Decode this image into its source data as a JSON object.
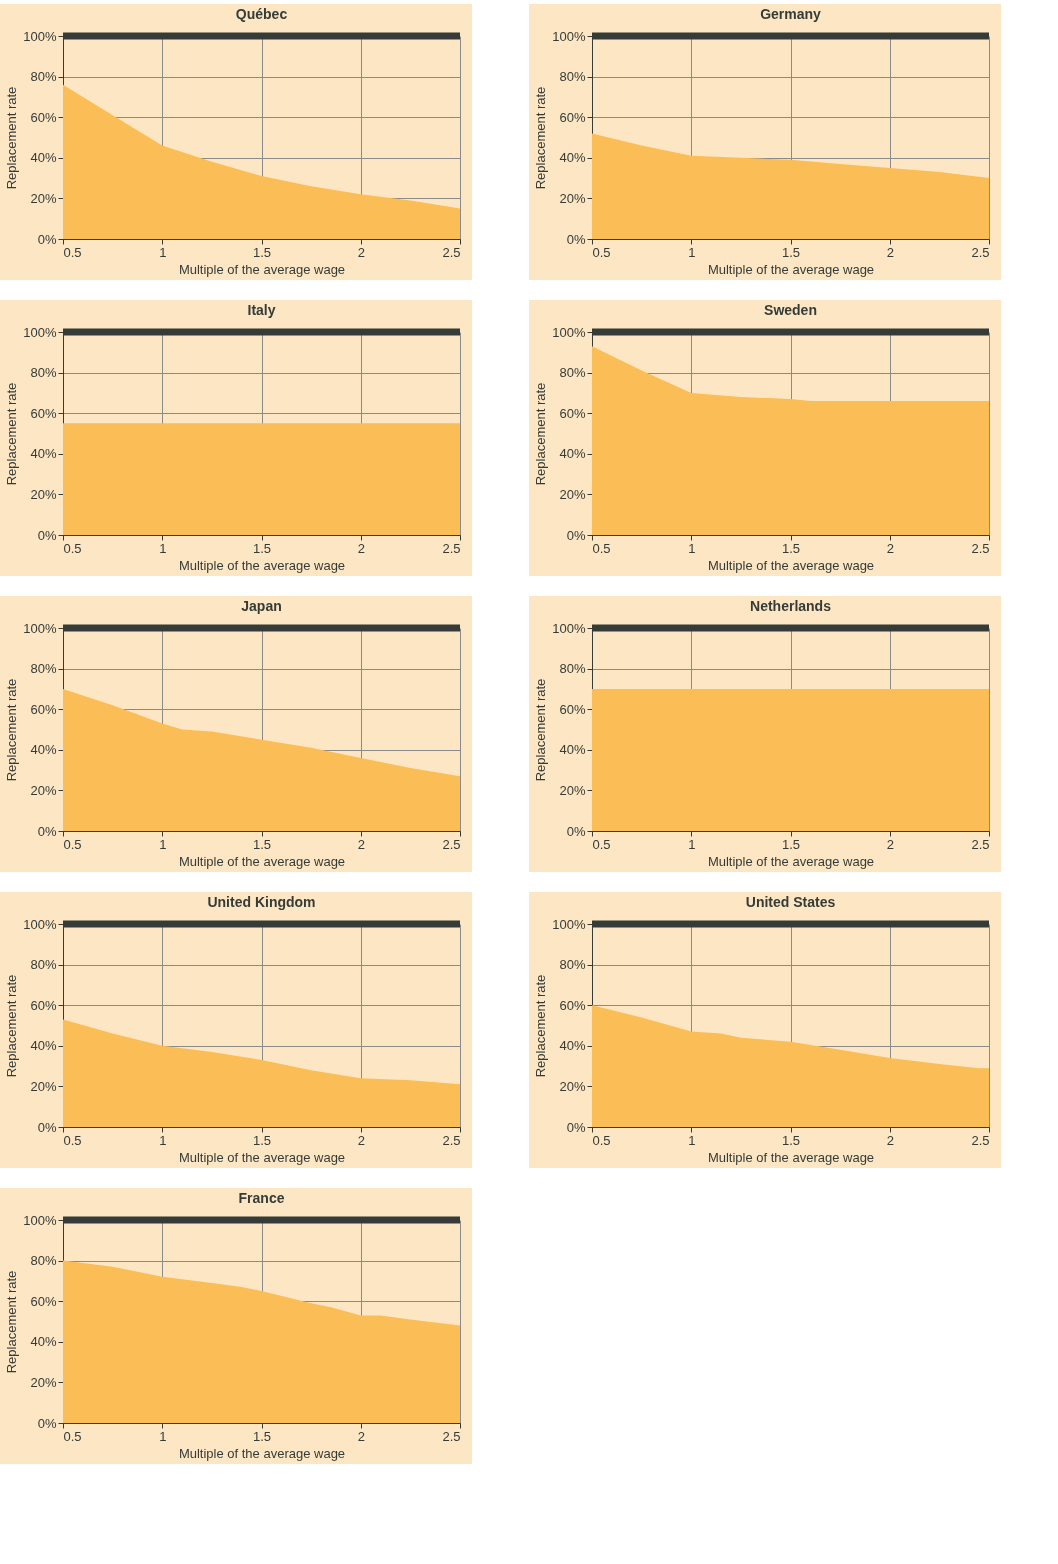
{
  "chart_data": [
    {
      "type": "area",
      "title": "Québec",
      "xlabel": "Multiple of the average wage",
      "ylabel": "Replacement rate",
      "x": [
        0.5,
        0.75,
        1,
        1.25,
        1.5,
        1.75,
        2,
        2.25,
        2.5
      ],
      "values": [
        76,
        61,
        46,
        38,
        31,
        26,
        22,
        19,
        15
      ],
      "color": "#fbbd56",
      "xlim": [
        0.5,
        2.5
      ],
      "xticks": [
        0.5,
        1,
        1.5,
        2,
        2.5
      ],
      "ylim": [
        0,
        100
      ],
      "yticks": [
        {
          "value": 0,
          "label": "0%"
        },
        {
          "value": 20,
          "label": "20%"
        },
        {
          "value": 40,
          "label": "40%"
        },
        {
          "value": 60,
          "label": "60%"
        },
        {
          "value": 80,
          "label": "80%"
        },
        {
          "value": 100,
          "label": "100%"
        }
      ],
      "grid": true,
      "ref_lines": [
        {
          "axis": "y",
          "value": 100,
          "color": "#353c37"
        }
      ]
    },
    {
      "type": "area",
      "title": "Germany",
      "xlabel": "Multiple of the average wage",
      "ylabel": "Replacement rate",
      "x": [
        0.5,
        0.75,
        1,
        1.25,
        1.5,
        1.75,
        2,
        2.25,
        2.5
      ],
      "values": [
        52,
        46,
        41,
        40,
        39,
        37,
        35,
        33,
        30
      ],
      "color": "#fbbd56",
      "xlim": [
        0.5,
        2.5
      ],
      "xticks": [
        0.5,
        1,
        1.5,
        2,
        2.5
      ],
      "ylim": [
        0,
        100
      ],
      "yticks": [
        {
          "value": 0,
          "label": "0%"
        },
        {
          "value": 20,
          "label": "20%"
        },
        {
          "value": 40,
          "label": "40%"
        },
        {
          "value": 60,
          "label": "60%"
        },
        {
          "value": 80,
          "label": "80%"
        },
        {
          "value": 100,
          "label": "100%"
        }
      ],
      "grid": true,
      "ref_lines": [
        {
          "axis": "y",
          "value": 100,
          "color": "#353c37"
        }
      ]
    },
    {
      "type": "area",
      "title": "Italy",
      "xlabel": "Multiple of the average wage",
      "ylabel": "Replacement rate",
      "x": [
        0.5,
        2.5
      ],
      "values": [
        55,
        55
      ],
      "color": "#fbbd56",
      "xlim": [
        0.5,
        2.5
      ],
      "xticks": [
        0.5,
        1,
        1.5,
        2,
        2.5
      ],
      "ylim": [
        0,
        100
      ],
      "yticks": [
        {
          "value": 0,
          "label": "0%"
        },
        {
          "value": 20,
          "label": "20%"
        },
        {
          "value": 40,
          "label": "40%"
        },
        {
          "value": 60,
          "label": "60%"
        },
        {
          "value": 80,
          "label": "80%"
        },
        {
          "value": 100,
          "label": "100%"
        }
      ],
      "grid": true,
      "ref_lines": [
        {
          "axis": "y",
          "value": 100,
          "color": "#353c37"
        }
      ]
    },
    {
      "type": "area",
      "title": "Sweden",
      "xlabel": "Multiple of the average wage",
      "ylabel": "Replacement rate",
      "x": [
        0.5,
        0.75,
        1,
        1.25,
        1.5,
        1.6,
        2,
        2.5
      ],
      "values": [
        93,
        81,
        70,
        68,
        67,
        66,
        66,
        66
      ],
      "color": "#fbbd56",
      "xlim": [
        0.5,
        2.5
      ],
      "xticks": [
        0.5,
        1,
        1.5,
        2,
        2.5
      ],
      "ylim": [
        0,
        100
      ],
      "yticks": [
        {
          "value": 0,
          "label": "0%"
        },
        {
          "value": 20,
          "label": "20%"
        },
        {
          "value": 40,
          "label": "40%"
        },
        {
          "value": 60,
          "label": "60%"
        },
        {
          "value": 80,
          "label": "80%"
        },
        {
          "value": 100,
          "label": "100%"
        }
      ],
      "grid": true,
      "ref_lines": [
        {
          "axis": "y",
          "value": 100,
          "color": "#353c37"
        }
      ]
    },
    {
      "type": "area",
      "title": "Japan",
      "xlabel": "Multiple of the average wage",
      "ylabel": "Replacement rate",
      "x": [
        0.5,
        0.75,
        1,
        1.1,
        1.25,
        1.5,
        1.75,
        2,
        2.25,
        2.5
      ],
      "values": [
        70,
        62,
        53,
        50,
        49,
        45,
        41,
        36,
        31,
        27
      ],
      "color": "#fbbd56",
      "xlim": [
        0.5,
        2.5
      ],
      "xticks": [
        0.5,
        1,
        1.5,
        2,
        2.5
      ],
      "ylim": [
        0,
        100
      ],
      "yticks": [
        {
          "value": 0,
          "label": "0%"
        },
        {
          "value": 20,
          "label": "20%"
        },
        {
          "value": 40,
          "label": "40%"
        },
        {
          "value": 60,
          "label": "60%"
        },
        {
          "value": 80,
          "label": "80%"
        },
        {
          "value": 100,
          "label": "100%"
        }
      ],
      "grid": true,
      "ref_lines": [
        {
          "axis": "y",
          "value": 100,
          "color": "#353c37"
        }
      ]
    },
    {
      "type": "area",
      "title": "Netherlands",
      "xlabel": "Multiple of the average wage",
      "ylabel": "Replacement rate",
      "x": [
        0.5,
        2.5
      ],
      "values": [
        70,
        70
      ],
      "color": "#fbbd56",
      "xlim": [
        0.5,
        2.5
      ],
      "xticks": [
        0.5,
        1,
        1.5,
        2,
        2.5
      ],
      "ylim": [
        0,
        100
      ],
      "yticks": [
        {
          "value": 0,
          "label": "0%"
        },
        {
          "value": 20,
          "label": "20%"
        },
        {
          "value": 40,
          "label": "40%"
        },
        {
          "value": 60,
          "label": "60%"
        },
        {
          "value": 80,
          "label": "80%"
        },
        {
          "value": 100,
          "label": "100%"
        }
      ],
      "grid": true,
      "ref_lines": [
        {
          "axis": "y",
          "value": 100,
          "color": "#353c37"
        }
      ]
    },
    {
      "type": "area",
      "title": "United Kingdom",
      "xlabel": "Multiple of the average wage",
      "ylabel": "Replacement rate",
      "x": [
        0.5,
        0.75,
        1,
        1.25,
        1.5,
        1.75,
        2,
        2.25,
        2.5
      ],
      "values": [
        53,
        46,
        40,
        37,
        33,
        28,
        24,
        23,
        21
      ],
      "color": "#fbbd56",
      "xlim": [
        0.5,
        2.5
      ],
      "xticks": [
        0.5,
        1,
        1.5,
        2,
        2.5
      ],
      "ylim": [
        0,
        100
      ],
      "yticks": [
        {
          "value": 0,
          "label": "0%"
        },
        {
          "value": 20,
          "label": "20%"
        },
        {
          "value": 40,
          "label": "40%"
        },
        {
          "value": 60,
          "label": "60%"
        },
        {
          "value": 80,
          "label": "80%"
        },
        {
          "value": 100,
          "label": "100%"
        }
      ],
      "grid": true,
      "ref_lines": [
        {
          "axis": "y",
          "value": 100,
          "color": "#353c37"
        }
      ]
    },
    {
      "type": "area",
      "title": "United States",
      "xlabel": "Multiple of the average wage",
      "ylabel": "Replacement rate",
      "x": [
        0.5,
        0.75,
        1,
        1.15,
        1.25,
        1.5,
        1.75,
        2,
        2.25,
        2.45,
        2.5
      ],
      "values": [
        60,
        54,
        47,
        46,
        44,
        42,
        38,
        34,
        31,
        29,
        29
      ],
      "color": "#fbbd56",
      "xlim": [
        0.5,
        2.5
      ],
      "xticks": [
        0.5,
        1,
        1.5,
        2,
        2.5
      ],
      "ylim": [
        0,
        100
      ],
      "yticks": [
        {
          "value": 0,
          "label": "0%"
        },
        {
          "value": 20,
          "label": "20%"
        },
        {
          "value": 40,
          "label": "40%"
        },
        {
          "value": 60,
          "label": "60%"
        },
        {
          "value": 80,
          "label": "80%"
        },
        {
          "value": 100,
          "label": "100%"
        }
      ],
      "grid": true,
      "ref_lines": [
        {
          "axis": "y",
          "value": 100,
          "color": "#353c37"
        }
      ]
    },
    {
      "type": "area",
      "title": "France",
      "xlabel": "Multiple of the average wage",
      "ylabel": "Replacement rate",
      "x": [
        0.5,
        0.75,
        1,
        1.25,
        1.4,
        1.5,
        1.75,
        1.85,
        2,
        2.1,
        2.25,
        2.5
      ],
      "values": [
        80,
        77,
        72,
        69,
        67,
        65,
        59,
        57,
        53,
        53,
        51,
        48
      ],
      "color": "#fbbd56",
      "xlim": [
        0.5,
        2.5
      ],
      "xticks": [
        0.5,
        1,
        1.5,
        2,
        2.5
      ],
      "ylim": [
        0,
        100
      ],
      "yticks": [
        {
          "value": 0,
          "label": "0%"
        },
        {
          "value": 20,
          "label": "20%"
        },
        {
          "value": 40,
          "label": "40%"
        },
        {
          "value": 60,
          "label": "60%"
        },
        {
          "value": 80,
          "label": "80%"
        },
        {
          "value": 100,
          "label": "100%"
        }
      ],
      "grid": true,
      "ref_lines": [
        {
          "axis": "y",
          "value": 100,
          "color": "#353c37"
        }
      ]
    }
  ]
}
